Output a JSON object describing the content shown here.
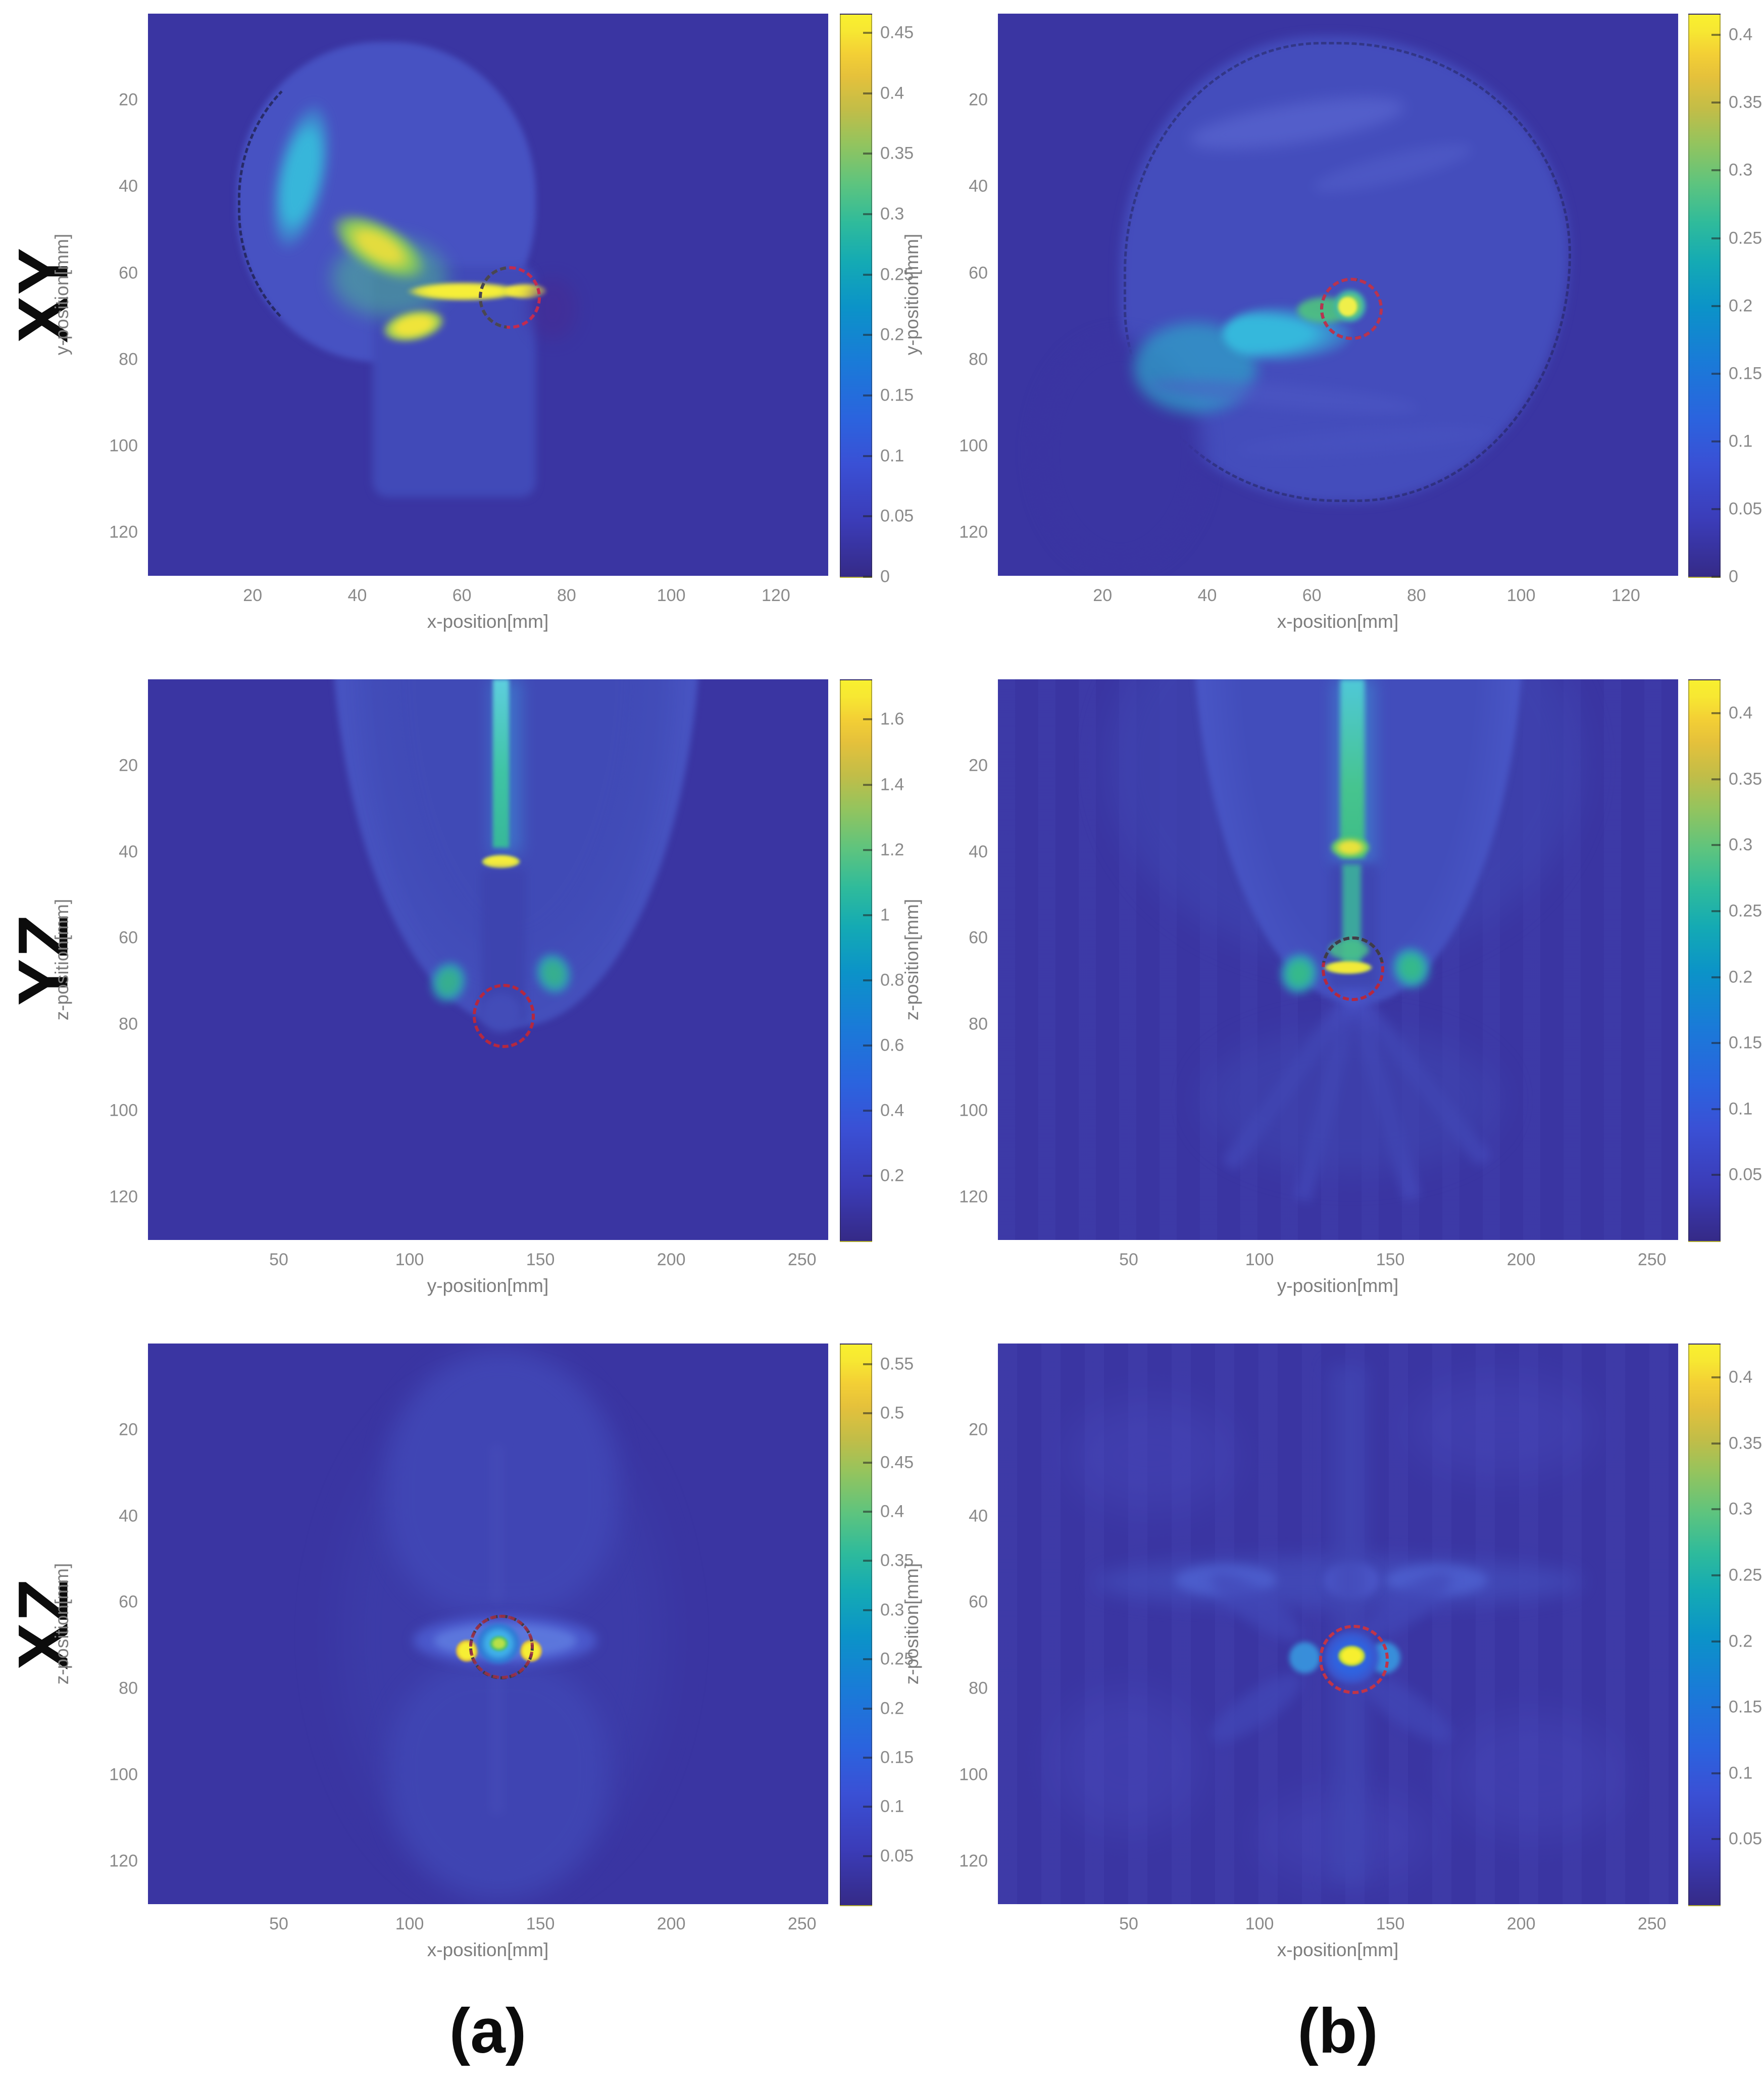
{
  "figure": {
    "row_labels": [
      "XY",
      "YZ",
      "XZ"
    ],
    "col_labels": [
      "(a)",
      "(b)"
    ],
    "colors": {
      "background": "#ffffff",
      "heatmap_low": "#3a35a2",
      "heatmap_high": "#f8f02f",
      "annotation_red": "#c22b50",
      "annotation_gray": "#44444e",
      "tick_text": "#8a8a8a",
      "label_text": "#0c0c0c"
    },
    "colormap": "parula-like (dark blue -> cyan -> green -> yellow)"
  },
  "chart_data": [
    {
      "type": "heatmap",
      "plane": "XY",
      "column": "(a)",
      "xlabel": "x-position[mm]",
      "ylabel": "y-position[mm]",
      "x_axis": {
        "ticks": [
          20,
          40,
          60,
          80,
          100,
          120
        ],
        "range": [
          0,
          130
        ]
      },
      "y_axis": {
        "ticks": [
          20,
          40,
          60,
          80,
          100,
          120
        ],
        "range": [
          0,
          130
        ]
      },
      "colorbar": {
        "ticks": [
          0.45,
          0.4,
          0.35,
          0.3,
          0.25,
          0.2,
          0.15,
          0.1,
          0.05,
          0
        ],
        "range": [
          0,
          0.465
        ]
      },
      "annotations": [
        {
          "name": "target-circle",
          "style": "red and gray dashed circle",
          "center_mm": [
            69,
            65
          ],
          "radius_mm": 6
        }
      ],
      "hotspots": [
        {
          "pos_mm": [
            52,
            64
          ],
          "value_approx": 0.46,
          "note": "bright yellow horizontal streak extending to target circle"
        },
        {
          "pos_mm": [
            36,
            52
          ],
          "value_approx": 0.4,
          "note": "diagonal yellow-green band near skull"
        },
        {
          "pos_mm": [
            28,
            25
          ],
          "value_approx": 0.2,
          "note": "cyan band along upper-left head boundary"
        }
      ]
    },
    {
      "type": "heatmap",
      "plane": "XY",
      "column": "(b)",
      "xlabel": "x-position[mm]",
      "ylabel": "y-position[mm]",
      "x_axis": {
        "ticks": [
          20,
          40,
          60,
          80,
          100,
          120
        ],
        "range": [
          0,
          130
        ]
      },
      "y_axis": {
        "ticks": [
          20,
          40,
          60,
          80,
          100,
          120
        ],
        "range": [
          0,
          130
        ]
      },
      "colorbar": {
        "ticks": [
          0.4,
          0.35,
          0.3,
          0.25,
          0.2,
          0.15,
          0.1,
          0.05,
          0
        ],
        "range": [
          0,
          0.415
        ]
      },
      "annotations": [
        {
          "name": "target-circle",
          "style": "red and gray dashed circle",
          "center_mm": [
            66,
            67
          ],
          "radius_mm": 6
        }
      ],
      "hotspots": [
        {
          "pos_mm": [
            67,
            67
          ],
          "value_approx": 0.42,
          "note": "compact yellow-green focal spot inside target circle"
        },
        {
          "pos_mm": [
            45,
            72
          ],
          "value_approx": 0.2,
          "note": "cyan beam wedge approaching focus from lower left"
        }
      ]
    },
    {
      "type": "heatmap",
      "plane": "YZ",
      "column": "(a)",
      "xlabel": "y-position[mm]",
      "ylabel": "z-position[mm]",
      "x_axis": {
        "ticks": [
          50,
          100,
          150,
          200,
          250
        ],
        "range": [
          0,
          260
        ]
      },
      "y_axis": {
        "ticks": [
          20,
          40,
          60,
          80,
          100,
          120
        ],
        "range": [
          0,
          130
        ]
      },
      "colorbar": {
        "ticks": [
          1.6,
          1.4,
          1.2,
          1,
          0.8,
          0.6,
          0.4,
          0.2
        ],
        "range": [
          0,
          1.72
        ]
      },
      "annotations": [
        {
          "name": "target-circle",
          "style": "red dashed circle",
          "center_mm": [
            135,
            77
          ],
          "radius_mm": 6
        }
      ],
      "hotspots": [
        {
          "pos_mm": [
            135,
            42
          ],
          "value_approx": 1.7,
          "note": "intense yellow peak at skull interface"
        },
        {
          "pos_mm": [
            135,
            15
          ],
          "value_approx": 0.8,
          "note": "vertical cyan-green entry streak"
        },
        {
          "pos_mm": [
            115,
            70
          ],
          "value_approx": 0.6,
          "note": "green lobe left of channel"
        },
        {
          "pos_mm": [
            155,
            68
          ],
          "value_approx": 0.6,
          "note": "green lobe right of channel"
        }
      ]
    },
    {
      "type": "heatmap",
      "plane": "YZ",
      "column": "(b)",
      "xlabel": "y-position[mm]",
      "ylabel": "z-position[mm]",
      "x_axis": {
        "ticks": [
          50,
          100,
          150,
          200,
          250
        ],
        "range": [
          0,
          260
        ]
      },
      "y_axis": {
        "ticks": [
          20,
          40,
          60,
          80,
          100,
          120
        ],
        "range": [
          0,
          130
        ]
      },
      "colorbar": {
        "ticks": [
          0.4,
          0.35,
          0.3,
          0.25,
          0.2,
          0.15,
          0.1,
          0.05
        ],
        "range": [
          0,
          0.425
        ]
      },
      "annotations": [
        {
          "name": "target-circle",
          "style": "red and gray dashed circle",
          "center_mm": [
            134,
            66
          ],
          "radius_mm": 6
        }
      ],
      "hotspots": [
        {
          "pos_mm": [
            134,
            39
          ],
          "value_approx": 0.42,
          "note": "yellow-green peak at skull interface"
        },
        {
          "pos_mm": [
            134,
            67
          ],
          "value_approx": 0.42,
          "note": "bright yellow focal ellipse inside target circle"
        },
        {
          "pos_mm": [
            113,
            68
          ],
          "value_approx": 0.25,
          "note": "green lobe left of focus"
        },
        {
          "pos_mm": [
            158,
            67
          ],
          "value_approx": 0.25,
          "note": "green lobe right of focus"
        }
      ]
    },
    {
      "type": "heatmap",
      "plane": "XZ",
      "column": "(a)",
      "xlabel": "x-position[mm]",
      "ylabel": "z-position[mm]",
      "x_axis": {
        "ticks": [
          50,
          100,
          150,
          200,
          250
        ],
        "range": [
          0,
          260
        ]
      },
      "y_axis": {
        "ticks": [
          20,
          40,
          60,
          80,
          100,
          120
        ],
        "range": [
          0,
          130
        ]
      },
      "colorbar": {
        "ticks": [
          0.55,
          0.5,
          0.45,
          0.4,
          0.35,
          0.3,
          0.25,
          0.2,
          0.15,
          0.1,
          0.05
        ],
        "range": [
          0,
          0.57
        ]
      },
      "annotations": [
        {
          "name": "target-circle",
          "style": "gray and red dashed circle",
          "center_mm": [
            134,
            70
          ],
          "radius_mm": 6
        }
      ],
      "hotspots": [
        {
          "pos_mm": [
            122,
            71
          ],
          "value_approx": 0.57,
          "note": "bright yellow side lobe left of target"
        },
        {
          "pos_mm": [
            147,
            71
          ],
          "value_approx": 0.57,
          "note": "bright yellow side lobe right of target"
        },
        {
          "pos_mm": [
            134,
            70
          ],
          "value_approx": 0.35,
          "note": "green-yellow core in cyan disk at target"
        }
      ]
    },
    {
      "type": "heatmap",
      "plane": "XZ",
      "column": "(b)",
      "xlabel": "x-position[mm]",
      "ylabel": "z-position[mm]",
      "x_axis": {
        "ticks": [
          50,
          100,
          150,
          200,
          250
        ],
        "range": [
          0,
          260
        ]
      },
      "y_axis": {
        "ticks": [
          20,
          40,
          60,
          80,
          100,
          120
        ],
        "range": [
          0,
          130
        ]
      },
      "colorbar": {
        "ticks": [
          0.4,
          0.35,
          0.3,
          0.25,
          0.2,
          0.15,
          0.1,
          0.05
        ],
        "range": [
          0,
          0.425
        ]
      },
      "annotations": [
        {
          "name": "target-circle",
          "style": "red dashed circle",
          "center_mm": [
            135,
            73
          ],
          "radius_mm": 6
        }
      ],
      "hotspots": [
        {
          "pos_mm": [
            135,
            73
          ],
          "value_approx": 0.42,
          "note": "single bright yellow focal spot inside red dashed circle"
        },
        {
          "pos_mm": [
            112,
            73
          ],
          "value_approx": 0.15,
          "note": "cyan flank left of focus"
        },
        {
          "pos_mm": [
            150,
            73
          ],
          "value_approx": 0.15,
          "note": "cyan flank right of focus"
        }
      ]
    }
  ]
}
